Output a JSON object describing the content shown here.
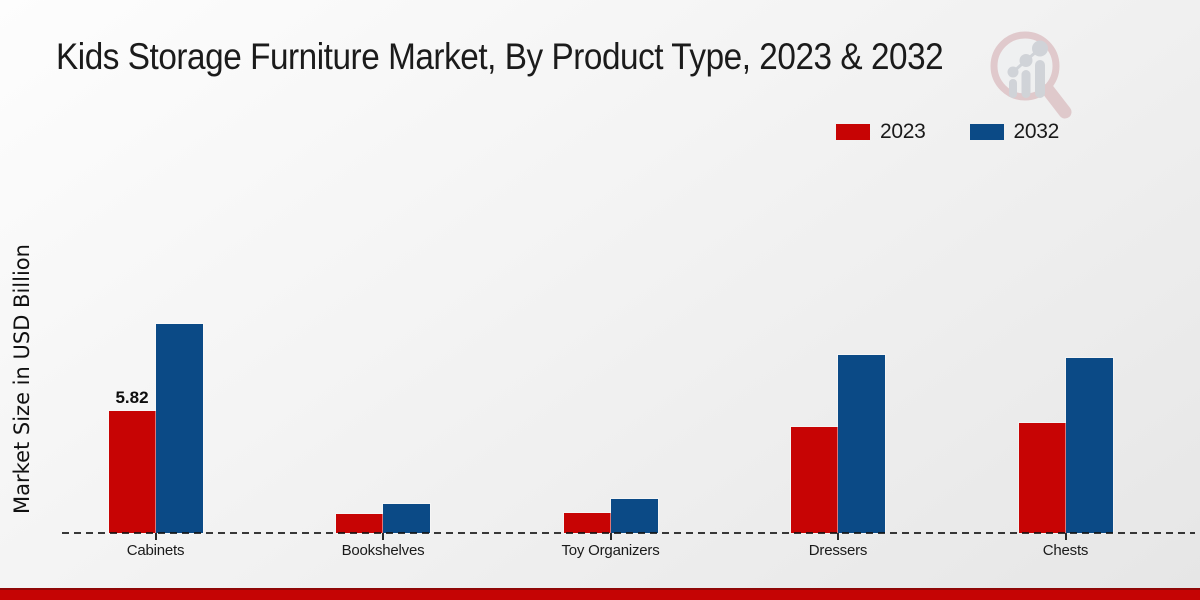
{
  "title": "Kids Storage Furniture Market, By Product Type, 2023 & 2032",
  "ylabel": "Market Size in USD Billion",
  "legend": {
    "items": [
      {
        "label": "2023",
        "color": "#c70404"
      },
      {
        "label": "2032",
        "color": "#0b4a86"
      }
    ]
  },
  "colors": {
    "series_2023": "#c70404",
    "series_2032": "#0b4a86",
    "footer_band": "#c50404",
    "footer_band_edge": "#8f0707",
    "axis_text": "#1a1a1a"
  },
  "branding": {
    "logo": "market-research-magnifier-logo"
  },
  "chart_data": {
    "type": "bar",
    "title": "Kids Storage Furniture Market, By Product Type, 2023 & 2032",
    "xlabel": "",
    "ylabel": "Market Size in USD Billion",
    "categories": [
      "Cabinets",
      "Bookshelves",
      "Toy Organizers",
      "Dressers",
      "Chests"
    ],
    "series": [
      {
        "name": "2023",
        "color": "#c70404",
        "values": [
          5.82,
          0.92,
          0.94,
          5.06,
          5.25
        ]
      },
      {
        "name": "2032",
        "color": "#0b4a86",
        "values": [
          9.93,
          1.4,
          1.62,
          8.49,
          8.32
        ]
      }
    ],
    "data_labels": [
      {
        "category": "Cabinets",
        "series": "2023",
        "text": "5.82"
      }
    ],
    "ylim": [
      0,
      11
    ],
    "grid": false,
    "legend_position": "top-right",
    "baseline_style": "dashed"
  }
}
